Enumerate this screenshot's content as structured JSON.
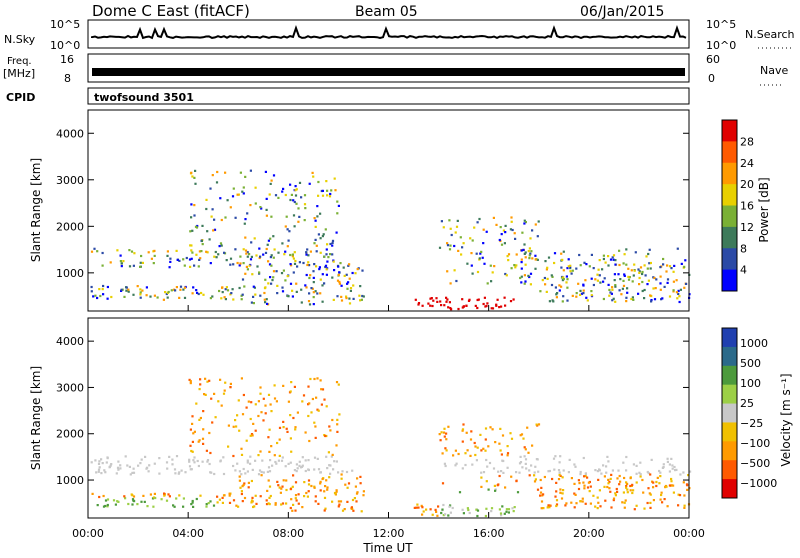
{
  "header": {
    "title": "Dome C East (fitACF)",
    "beam": "Beam 05",
    "date": "06/Jan/2015"
  },
  "strip_labels": {
    "nsky": "N.Sky",
    "nsky_top": "10^5",
    "nsky_bottom": "10^0",
    "nsearch": "N.Search",
    "nsearch_top": "10^5",
    "nsearch_bottom": "10^0",
    "freq_line1": "Freq.",
    "freq_line2": "[MHz]",
    "freq_top": "16",
    "freq_bottom": "8",
    "nave": "Nave",
    "nave_top": "60",
    "nave_bottom": "0",
    "cpid": "CPID",
    "cpid_value": "twofsound 3501"
  },
  "colors": {
    "axis": "#000000",
    "power_scale": [
      "#0000ff",
      "#2b4aa6",
      "#3d7a5a",
      "#7ab035",
      "#e8d000",
      "#ff9a00",
      "#ff5a00",
      "#e00000"
    ],
    "velocity_scale": [
      "#e00000",
      "#ff5a00",
      "#ff9a00",
      "#f0c000",
      "#c8c8c8",
      "#9ccf46",
      "#4c9a3c",
      "#2b6a8a",
      "#2040b0"
    ]
  },
  "chart_data": [
    {
      "type": "heatmap",
      "name": "power",
      "xlabel": "",
      "ylabel": "Slant Range [km]",
      "xlim": [
        0,
        24
      ],
      "ylim": [
        180,
        4500
      ],
      "x_ticks": [
        "00:00",
        "04:00",
        "08:00",
        "12:00",
        "16:00",
        "20:00",
        "00:00"
      ],
      "y_ticks": [
        1000,
        2000,
        3000,
        4000
      ],
      "colorbar": {
        "label": "Power [dB]",
        "ticks": [
          4,
          8,
          12,
          16,
          20,
          24,
          28
        ],
        "range": [
          0,
          32
        ]
      }
    },
    {
      "type": "heatmap",
      "name": "velocity",
      "xlabel": "Time UT",
      "ylabel": "Slant Range [km]",
      "xlim": [
        0,
        24
      ],
      "ylim": [
        180,
        4500
      ],
      "x_ticks": [
        "00:00",
        "04:00",
        "08:00",
        "12:00",
        "16:00",
        "20:00",
        "00:00"
      ],
      "y_ticks": [
        1000,
        2000,
        3000,
        4000
      ],
      "colorbar": {
        "label": "Velocity [m s⁻¹]",
        "ticks": [
          "1000",
          "500",
          "100",
          "25",
          "−25",
          "−100",
          "−500",
          "−1000"
        ]
      }
    }
  ]
}
